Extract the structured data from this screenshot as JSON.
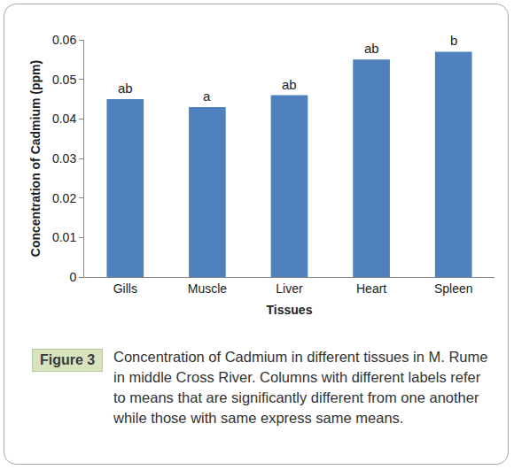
{
  "chart_data": {
    "type": "bar",
    "categories": [
      "Gills",
      "Muscle",
      "Liver",
      "Heart",
      "Spleen"
    ],
    "values": [
      0.045,
      0.043,
      0.046,
      0.055,
      0.057
    ],
    "color": "#4f81bd",
    "xlabel": "Tissues",
    "ylabel": "Concentration of Cadmium (ppm)",
    "ylim": [
      0,
      0.06
    ],
    "yticks": [
      0,
      0.01,
      0.02,
      0.03,
      0.04,
      0.05,
      0.06
    ],
    "grid": false,
    "annotations": [
      {
        "category": "Gills",
        "text": "ab"
      },
      {
        "category": "Muscle",
        "text": "a"
      },
      {
        "category": "Liver",
        "text": "ab"
      },
      {
        "category": "Heart",
        "text": "ab"
      },
      {
        "category": "Spleen",
        "text": "b"
      }
    ],
    "figure_label": "Figure 3",
    "caption": "Concentration of Cadmium in different tissues in M. Rume in middle Cross River. Columns with different labels refer to means that are significantly different from one another while those with same express same means."
  }
}
